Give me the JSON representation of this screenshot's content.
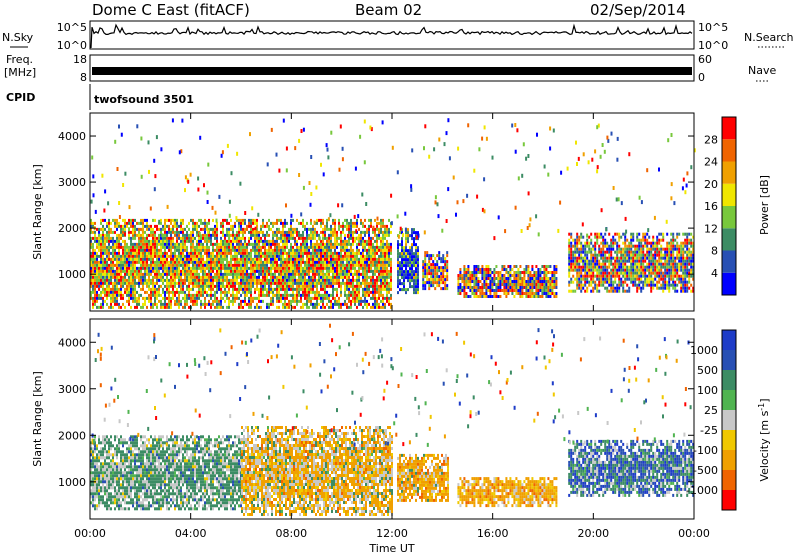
{
  "header": {
    "title": "Dome C East (fitACF)",
    "beam": "Beam 02",
    "date": "02/Sep/2014"
  },
  "panels": {
    "nsky": {
      "left_label": "N.Sky",
      "right_label": "N.Search",
      "left_ticks": [
        "10^5",
        "10^0"
      ],
      "right_ticks": [
        "10^5",
        "10^0"
      ]
    },
    "freq": {
      "left_label_top": "Freq.",
      "left_label_unit": "[MHz]",
      "left_ticks": [
        "18",
        "8"
      ],
      "right_label": "Nave",
      "right_ticks": [
        "60",
        "0"
      ]
    },
    "cpid": {
      "label": "CPID",
      "value": "twofsound 3501"
    }
  },
  "chart_data": [
    {
      "type": "heatmap",
      "name": "power",
      "ylabel": "Slant Range [km]",
      "ylim": [
        200,
        4500
      ],
      "yticks": [
        "1000",
        "2000",
        "3000",
        "4000"
      ],
      "xlim": [
        0,
        24
      ],
      "xticks": [
        "00:00",
        "04:00",
        "08:00",
        "12:00",
        "16:00",
        "20:00",
        "00:00"
      ],
      "colorbar": {
        "label": "Power [dB]",
        "ticks": [
          "4",
          "8",
          "12",
          "16",
          "20",
          "24",
          "28"
        ],
        "colors": [
          "#0000ff",
          "#2850b4",
          "#3c8c64",
          "#78c83c",
          "#f0e600",
          "#f0a000",
          "#f06400",
          "#ff0000"
        ]
      },
      "regions": [
        {
          "t0": 0.0,
          "t1": 12.0,
          "r0": 300,
          "r1": 2200,
          "mix": [
            0.05,
            0.05,
            0.15,
            0.2,
            0.15,
            0.15,
            0.1,
            0.15
          ]
        },
        {
          "t0": 12.2,
          "t1": 13.0,
          "r0": 600,
          "r1": 2000,
          "mix": [
            0.3,
            0.3,
            0.2,
            0.1,
            0.05,
            0.05,
            0.0,
            0.0
          ]
        },
        {
          "t0": 13.2,
          "t1": 14.2,
          "r0": 700,
          "r1": 1500,
          "mix": [
            0.2,
            0.1,
            0.1,
            0.1,
            0.1,
            0.1,
            0.2,
            0.1
          ]
        },
        {
          "t0": 14.6,
          "t1": 18.5,
          "r0": 500,
          "r1": 1200,
          "mix": [
            0.2,
            0.1,
            0.1,
            0.1,
            0.1,
            0.1,
            0.2,
            0.1
          ]
        },
        {
          "t0": 19.0,
          "t1": 24.0,
          "r0": 600,
          "r1": 1900,
          "mix": [
            0.1,
            0.15,
            0.15,
            0.15,
            0.1,
            0.1,
            0.1,
            0.15
          ]
        }
      ]
    },
    {
      "type": "heatmap",
      "name": "velocity",
      "ylabel": "Slant Range [km]",
      "ylim": [
        200,
        4500
      ],
      "yticks": [
        "1000",
        "2000",
        "3000",
        "4000"
      ],
      "xlim": [
        0,
        24
      ],
      "xticks": [
        "00:00",
        "04:00",
        "08:00",
        "12:00",
        "16:00",
        "20:00",
        "00:00"
      ],
      "xlabel": "Time UT",
      "colorbar": {
        "label": "Velocity [m s",
        "label_sup": "-1",
        "label_end": "]",
        "ticks": [
          "1000",
          "500",
          "100",
          "25",
          "-25",
          "-100",
          "-500",
          "-1000"
        ],
        "colors": [
          "#1e3cc8",
          "#2850b4",
          "#3c8c64",
          "#50b450",
          "#c8c8c8",
          "#f0c800",
          "#f0a000",
          "#f06400",
          "#ff0000"
        ]
      },
      "regions": [
        {
          "t0": 0.0,
          "t1": 6.0,
          "r0": 400,
          "r1": 2000,
          "mix": [
            0.0,
            0.05,
            0.55,
            0.05,
            0.3,
            0.05,
            0.0,
            0.0,
            0.0
          ]
        },
        {
          "t0": 6.0,
          "t1": 12.0,
          "r0": 300,
          "r1": 2200,
          "mix": [
            0.0,
            0.0,
            0.1,
            0.02,
            0.28,
            0.1,
            0.45,
            0.05,
            0.0
          ]
        },
        {
          "t0": 12.2,
          "t1": 14.2,
          "r0": 600,
          "r1": 1600,
          "mix": [
            0.0,
            0.0,
            0.05,
            0.0,
            0.15,
            0.1,
            0.6,
            0.1,
            0.0
          ]
        },
        {
          "t0": 14.6,
          "t1": 18.5,
          "r0": 500,
          "r1": 1100,
          "mix": [
            0.0,
            0.0,
            0.0,
            0.0,
            0.1,
            0.2,
            0.6,
            0.1,
            0.0
          ]
        },
        {
          "t0": 19.0,
          "t1": 24.0,
          "r0": 700,
          "r1": 1900,
          "mix": [
            0.2,
            0.25,
            0.3,
            0.05,
            0.2,
            0.0,
            0.0,
            0.0,
            0.0
          ]
        }
      ]
    }
  ]
}
